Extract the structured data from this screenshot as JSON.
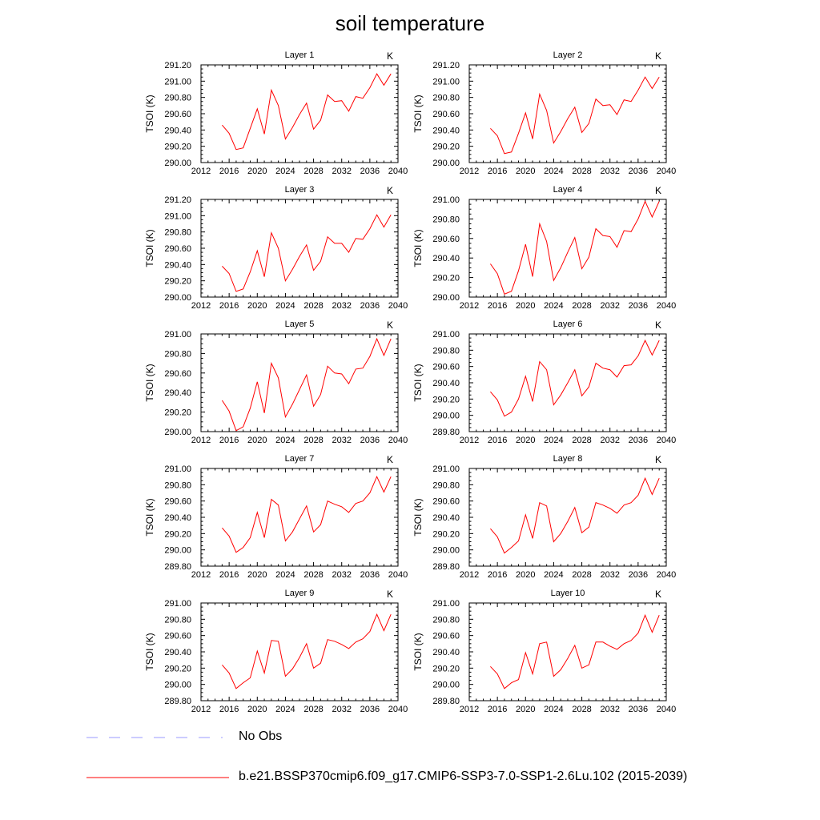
{
  "page": {
    "title": "soil temperature"
  },
  "legend": [
    {
      "label": "No Obs",
      "color": "#9999ff",
      "style": "dashed"
    },
    {
      "label": "b.e21.BSSP370cmip6.f09_g17.CMIP6-SSP3-7.0-SSP1-2.6Lu.102 (2015-2039)",
      "color": "#ff0000",
      "style": "solid"
    }
  ],
  "chart_data": [
    {
      "type": "line",
      "title": "Layer 1",
      "units": "K",
      "ylabel": "TSOI  (K)",
      "xlim": [
        2012,
        2040
      ],
      "xticks": [
        "2012",
        "2016",
        "2020",
        "2024",
        "2028",
        "2032",
        "2036",
        "2040"
      ],
      "ylim": [
        290.0,
        291.2
      ],
      "yticks": [
        "290.00",
        "290.20",
        "290.40",
        "290.60",
        "290.80",
        "291.00",
        "291.20"
      ],
      "x": [
        2015,
        2016,
        2017,
        2018,
        2019,
        2020,
        2021,
        2022,
        2023,
        2024,
        2025,
        2026,
        2027,
        2028,
        2029,
        2030,
        2031,
        2032,
        2033,
        2034,
        2035,
        2036,
        2037,
        2038,
        2039
      ],
      "series": [
        {
          "values": [
            290.46,
            290.36,
            290.16,
            290.18,
            290.42,
            290.66,
            290.35,
            290.89,
            290.7,
            290.29,
            290.43,
            290.59,
            290.73,
            290.41,
            290.52,
            290.83,
            290.75,
            290.76,
            290.63,
            290.81,
            290.79,
            290.92,
            291.09,
            290.95,
            291.09
          ]
        }
      ]
    },
    {
      "type": "line",
      "title": "Layer 2",
      "units": "K",
      "ylabel": "TSOI  (K)",
      "xlim": [
        2012,
        2040
      ],
      "xticks": [
        "2012",
        "2016",
        "2020",
        "2024",
        "2028",
        "2032",
        "2036",
        "2040"
      ],
      "ylim": [
        290.0,
        291.2
      ],
      "yticks": [
        "290.00",
        "290.20",
        "290.40",
        "290.60",
        "290.80",
        "291.00",
        "291.20"
      ],
      "x": [
        2015,
        2016,
        2017,
        2018,
        2019,
        2020,
        2021,
        2022,
        2023,
        2024,
        2025,
        2026,
        2027,
        2028,
        2029,
        2030,
        2031,
        2032,
        2033,
        2034,
        2035,
        2036,
        2037,
        2038,
        2039
      ],
      "series": [
        {
          "values": [
            290.42,
            290.33,
            290.11,
            290.13,
            290.36,
            290.61,
            290.29,
            290.84,
            290.64,
            290.24,
            290.38,
            290.54,
            290.68,
            290.37,
            290.48,
            290.78,
            290.7,
            290.71,
            290.59,
            290.77,
            290.75,
            290.89,
            291.05,
            290.91,
            291.05
          ]
        }
      ]
    },
    {
      "type": "line",
      "title": "Layer 3",
      "units": "K",
      "ylabel": "TSOI  (K)",
      "xlim": [
        2012,
        2040
      ],
      "xticks": [
        "2012",
        "2016",
        "2020",
        "2024",
        "2028",
        "2032",
        "2036",
        "2040"
      ],
      "ylim": [
        290.0,
        291.2
      ],
      "yticks": [
        "290.00",
        "290.20",
        "290.40",
        "290.60",
        "290.80",
        "291.00",
        "291.20"
      ],
      "x": [
        2015,
        2016,
        2017,
        2018,
        2019,
        2020,
        2021,
        2022,
        2023,
        2024,
        2025,
        2026,
        2027,
        2028,
        2029,
        2030,
        2031,
        2032,
        2033,
        2034,
        2035,
        2036,
        2037,
        2038,
        2039
      ],
      "series": [
        {
          "values": [
            290.38,
            290.29,
            290.07,
            290.1,
            290.31,
            290.57,
            290.25,
            290.79,
            290.6,
            290.2,
            290.34,
            290.5,
            290.64,
            290.33,
            290.44,
            290.74,
            290.66,
            290.66,
            290.55,
            290.72,
            290.71,
            290.84,
            291.01,
            290.86,
            291.01
          ]
        }
      ]
    },
    {
      "type": "line",
      "title": "Layer 4",
      "units": "K",
      "ylabel": "TSOI  (K)",
      "xlim": [
        2012,
        2040
      ],
      "xticks": [
        "2012",
        "2016",
        "2020",
        "2024",
        "2028",
        "2032",
        "2036",
        "2040"
      ],
      "ylim": [
        290.0,
        291.0
      ],
      "yticks": [
        "290.00",
        "290.20",
        "290.40",
        "290.60",
        "290.80",
        "291.00"
      ],
      "x": [
        2015,
        2016,
        2017,
        2018,
        2019,
        2020,
        2021,
        2022,
        2023,
        2024,
        2025,
        2026,
        2027,
        2028,
        2029,
        2030,
        2031,
        2032,
        2033,
        2034,
        2035,
        2036,
        2037,
        2038,
        2039
      ],
      "series": [
        {
          "values": [
            290.34,
            290.24,
            290.03,
            290.06,
            290.27,
            290.54,
            290.21,
            290.75,
            290.57,
            290.17,
            290.3,
            290.46,
            290.61,
            290.29,
            290.41,
            290.7,
            290.63,
            290.62,
            290.51,
            290.68,
            290.67,
            290.8,
            290.98,
            290.82,
            290.98
          ]
        }
      ]
    },
    {
      "type": "line",
      "title": "Layer 5",
      "units": "K",
      "ylabel": "TSOI  (K)",
      "xlim": [
        2012,
        2040
      ],
      "xticks": [
        "2012",
        "2016",
        "2020",
        "2024",
        "2028",
        "2032",
        "2036",
        "2040"
      ],
      "ylim": [
        290.0,
        291.0
      ],
      "yticks": [
        "290.00",
        "290.20",
        "290.40",
        "290.60",
        "290.80",
        "291.00"
      ],
      "x": [
        2015,
        2016,
        2017,
        2018,
        2019,
        2020,
        2021,
        2022,
        2023,
        2024,
        2025,
        2026,
        2027,
        2028,
        2029,
        2030,
        2031,
        2032,
        2033,
        2034,
        2035,
        2036,
        2037,
        2038,
        2039
      ],
      "series": [
        {
          "values": [
            290.32,
            290.21,
            290.01,
            290.05,
            290.24,
            290.51,
            290.19,
            290.7,
            290.55,
            290.15,
            290.28,
            290.43,
            290.58,
            290.26,
            290.38,
            290.67,
            290.6,
            290.59,
            290.49,
            290.64,
            290.65,
            290.77,
            290.95,
            290.78,
            290.95
          ]
        }
      ]
    },
    {
      "type": "line",
      "title": "Layer 6",
      "units": "K",
      "ylabel": "TSOI  (K)",
      "xlim": [
        2012,
        2040
      ],
      "xticks": [
        "2012",
        "2016",
        "2020",
        "2024",
        "2028",
        "2032",
        "2036",
        "2040"
      ],
      "ylim": [
        289.8,
        291.0
      ],
      "yticks": [
        "289.80",
        "290.00",
        "290.20",
        "290.40",
        "290.60",
        "290.80",
        "291.00"
      ],
      "x": [
        2015,
        2016,
        2017,
        2018,
        2019,
        2020,
        2021,
        2022,
        2023,
        2024,
        2025,
        2026,
        2027,
        2028,
        2029,
        2030,
        2031,
        2032,
        2033,
        2034,
        2035,
        2036,
        2037,
        2038,
        2039
      ],
      "series": [
        {
          "values": [
            290.29,
            290.19,
            289.99,
            290.04,
            290.2,
            290.48,
            290.17,
            290.66,
            290.56,
            290.13,
            290.25,
            290.4,
            290.56,
            290.24,
            290.35,
            290.64,
            290.58,
            290.56,
            290.47,
            290.61,
            290.62,
            290.73,
            290.92,
            290.74,
            290.92
          ]
        }
      ]
    },
    {
      "type": "line",
      "title": "Layer 7",
      "units": "K",
      "ylabel": "TSOI  (K)",
      "xlim": [
        2012,
        2040
      ],
      "xticks": [
        "2012",
        "2016",
        "2020",
        "2024",
        "2028",
        "2032",
        "2036",
        "2040"
      ],
      "ylim": [
        289.8,
        291.0
      ],
      "yticks": [
        "289.80",
        "290.00",
        "290.20",
        "290.40",
        "290.60",
        "290.80",
        "291.00"
      ],
      "x": [
        2015,
        2016,
        2017,
        2018,
        2019,
        2020,
        2021,
        2022,
        2023,
        2024,
        2025,
        2026,
        2027,
        2028,
        2029,
        2030,
        2031,
        2032,
        2033,
        2034,
        2035,
        2036,
        2037,
        2038,
        2039
      ],
      "series": [
        {
          "values": [
            290.27,
            290.17,
            289.97,
            290.03,
            290.15,
            290.46,
            290.15,
            290.62,
            290.55,
            290.11,
            290.22,
            290.38,
            290.54,
            290.22,
            290.31,
            290.6,
            290.56,
            290.53,
            290.46,
            290.57,
            290.6,
            290.7,
            290.9,
            290.71,
            290.9
          ]
        }
      ]
    },
    {
      "type": "line",
      "title": "Layer 8",
      "units": "K",
      "ylabel": "TSOI  (K)",
      "xlim": [
        2012,
        2040
      ],
      "xticks": [
        "2012",
        "2016",
        "2020",
        "2024",
        "2028",
        "2032",
        "2036",
        "2040"
      ],
      "ylim": [
        289.8,
        291.0
      ],
      "yticks": [
        "289.80",
        "290.00",
        "290.20",
        "290.40",
        "290.60",
        "290.80",
        "291.00"
      ],
      "x": [
        2015,
        2016,
        2017,
        2018,
        2019,
        2020,
        2021,
        2022,
        2023,
        2024,
        2025,
        2026,
        2027,
        2028,
        2029,
        2030,
        2031,
        2032,
        2033,
        2034,
        2035,
        2036,
        2037,
        2038,
        2039
      ],
      "series": [
        {
          "values": [
            290.26,
            290.16,
            289.96,
            290.03,
            290.11,
            290.43,
            290.14,
            290.58,
            290.54,
            290.1,
            290.2,
            290.35,
            290.52,
            290.21,
            290.28,
            290.58,
            290.55,
            290.51,
            290.45,
            290.55,
            290.58,
            290.67,
            290.88,
            290.68,
            290.88
          ]
        }
      ]
    },
    {
      "type": "line",
      "title": "Layer 9",
      "units": "K",
      "ylabel": "TSOI  (K)",
      "xlim": [
        2012,
        2040
      ],
      "xticks": [
        "2012",
        "2016",
        "2020",
        "2024",
        "2028",
        "2032",
        "2036",
        "2040"
      ],
      "ylim": [
        289.8,
        291.0
      ],
      "yticks": [
        "289.80",
        "290.00",
        "290.20",
        "290.40",
        "290.60",
        "290.80",
        "291.00"
      ],
      "x": [
        2015,
        2016,
        2017,
        2018,
        2019,
        2020,
        2021,
        2022,
        2023,
        2024,
        2025,
        2026,
        2027,
        2028,
        2029,
        2030,
        2031,
        2032,
        2033,
        2034,
        2035,
        2036,
        2037,
        2038,
        2039
      ],
      "series": [
        {
          "values": [
            290.24,
            290.14,
            289.95,
            290.02,
            290.08,
            290.41,
            290.14,
            290.54,
            290.53,
            290.1,
            290.19,
            290.33,
            290.5,
            290.2,
            290.26,
            290.55,
            290.53,
            290.49,
            290.44,
            290.52,
            290.56,
            290.65,
            290.86,
            290.66,
            290.86
          ]
        }
      ]
    },
    {
      "type": "line",
      "title": "Layer 10",
      "units": "K",
      "ylabel": "TSOI  (K)",
      "xlim": [
        2012,
        2040
      ],
      "xticks": [
        "2012",
        "2016",
        "2020",
        "2024",
        "2028",
        "2032",
        "2036",
        "2040"
      ],
      "ylim": [
        289.8,
        291.0
      ],
      "yticks": [
        "289.80",
        "290.00",
        "290.20",
        "290.40",
        "290.60",
        "290.80",
        "291.00"
      ],
      "x": [
        2015,
        2016,
        2017,
        2018,
        2019,
        2020,
        2021,
        2022,
        2023,
        2024,
        2025,
        2026,
        2027,
        2028,
        2029,
        2030,
        2031,
        2032,
        2033,
        2034,
        2035,
        2036,
        2037,
        2038,
        2039
      ],
      "series": [
        {
          "values": [
            290.22,
            290.13,
            289.95,
            290.02,
            290.06,
            290.39,
            290.13,
            290.5,
            290.52,
            290.1,
            290.18,
            290.32,
            290.48,
            290.2,
            290.24,
            290.52,
            290.52,
            290.47,
            290.43,
            290.5,
            290.54,
            290.63,
            290.85,
            290.64,
            290.85
          ]
        }
      ]
    }
  ]
}
